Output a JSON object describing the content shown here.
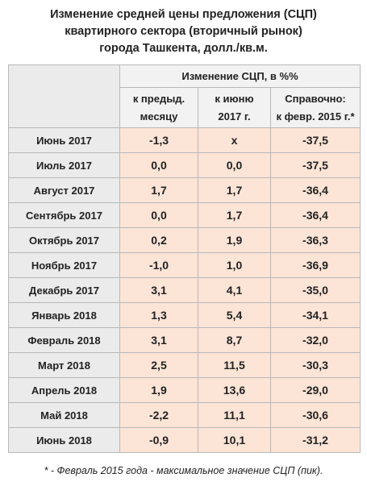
{
  "header": {
    "title": [
      "Изменение средней цены предложения (СЦП)",
      "квартирного сектора (вторичный рынок)",
      "города Ташкента, долл./кв.м."
    ]
  },
  "table": {
    "group_header": "Изменение СЦП, в %%",
    "columns": [
      [
        "к предыд.",
        "месяцу"
      ],
      [
        "к июню",
        "2017 г."
      ],
      [
        "Справочно:",
        "к февр. 2015 г.*"
      ]
    ],
    "rows": [
      [
        "Июнь 2017",
        "-1,3",
        "x",
        "-37,5"
      ],
      [
        "Июль 2017",
        "0,0",
        "0,0",
        "-37,5"
      ],
      [
        "Август 2017",
        "1,7",
        "1,7",
        "-36,4"
      ],
      [
        "Сентябрь 2017",
        "0,0",
        "1,7",
        "-36,4"
      ],
      [
        "Октябрь 2017",
        "0,2",
        "1,9",
        "-36,3"
      ],
      [
        "Ноябрь 2017",
        "-1,0",
        "1,0",
        "-36,9"
      ],
      [
        "Декабрь 2017",
        "3,1",
        "4,1",
        "-35,0"
      ],
      [
        "Январь 2018",
        "1,3",
        "5,4",
        "-34,1"
      ],
      [
        "Февраль 2018",
        "3,1",
        "8,7",
        "-32,0"
      ],
      [
        "Март 2018",
        "2,5",
        "11,5",
        "-30,3"
      ],
      [
        "Апрель 2018",
        "1,9",
        "13,6",
        "-29,0"
      ],
      [
        "Май 2018",
        "-2,2",
        "11,1",
        "-30,6"
      ],
      [
        "Июнь 2018",
        "-0,9",
        "10,1",
        "-31,2"
      ]
    ]
  },
  "footnote": "* - Февраль 2015 года - максимальное значение СЦП (пик)."
}
